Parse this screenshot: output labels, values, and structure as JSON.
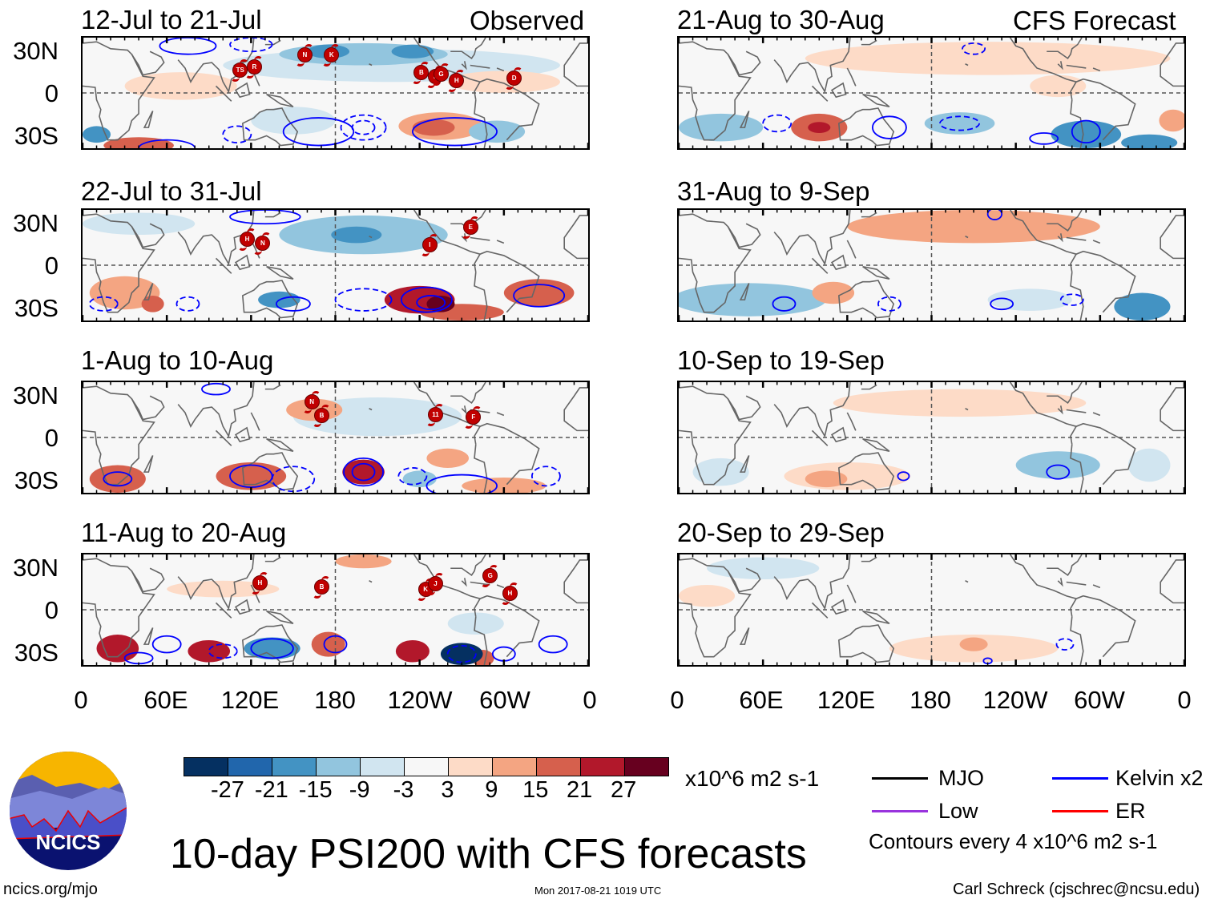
{
  "header": {
    "observed_label": "Observed",
    "forecast_label": "CFS Forecast"
  },
  "lat_labels": [
    "30N",
    "0",
    "30S"
  ],
  "lon_labels": [
    "0",
    "60E",
    "120E",
    "180",
    "120W",
    "60W",
    "0"
  ],
  "panels": [
    {
      "title": "12-Jul to 21-Jul",
      "column": "observed",
      "shading": [
        {
          "lon": 220,
          "lat": 20,
          "rlon": 120,
          "rlat": 12,
          "value": -3
        },
        {
          "lon": 200,
          "lat": 28,
          "rlon": 60,
          "rlat": 8,
          "value": -9
        },
        {
          "lon": 175,
          "lat": 30,
          "rlon": 15,
          "rlat": 5,
          "value": -15
        },
        {
          "lon": 235,
          "lat": 30,
          "rlon": 15,
          "rlat": 5,
          "value": -15
        },
        {
          "lon": 70,
          "lat": 5,
          "rlon": 40,
          "rlat": 10,
          "value": 3
        },
        {
          "lon": 300,
          "lat": 8,
          "rlon": 40,
          "rlat": 8,
          "value": 3
        },
        {
          "lon": 255,
          "lat": -24,
          "rlon": 30,
          "rlat": 10,
          "value": 9
        },
        {
          "lon": 250,
          "lat": -25,
          "rlon": 15,
          "rlat": 6,
          "value": 15
        },
        {
          "lon": 40,
          "lat": -38,
          "rlon": 25,
          "rlat": 6,
          "value": 15
        },
        {
          "lon": 10,
          "lat": -30,
          "rlon": 10,
          "rlat": 6,
          "value": -15
        },
        {
          "lon": 295,
          "lat": -28,
          "rlon": 20,
          "rlat": 8,
          "value": -9
        },
        {
          "lon": 150,
          "lat": -20,
          "rlon": 30,
          "rlat": 10,
          "value": -3
        }
      ],
      "contours": [
        {
          "lon": 200,
          "lat": -25,
          "rlon": 16,
          "rlat": 9,
          "sign": -1
        },
        {
          "lon": 200,
          "lat": -25,
          "rlon": 8,
          "rlat": 5,
          "sign": -1
        },
        {
          "lon": 168,
          "lat": -28,
          "rlon": 25,
          "rlat": 10,
          "sign": 1
        },
        {
          "lon": 265,
          "lat": -28,
          "rlon": 30,
          "rlat": 10,
          "sign": 1
        },
        {
          "lon": 110,
          "lat": -30,
          "rlon": 10,
          "rlat": 6,
          "sign": -1
        },
        {
          "lon": 60,
          "lat": -40,
          "rlon": 20,
          "rlat": 6,
          "sign": 1
        },
        {
          "lon": 75,
          "lat": 34,
          "rlon": 20,
          "rlat": 6,
          "sign": 1
        },
        {
          "lon": 120,
          "lat": 35,
          "rlon": 15,
          "rlat": 5,
          "sign": -1
        }
      ],
      "storms": [
        {
          "lon": 112,
          "lat": 17,
          "label": "TS"
        },
        {
          "lon": 122,
          "lat": 19,
          "label": "R"
        },
        {
          "lon": 158,
          "lat": 28,
          "label": "N"
        },
        {
          "lon": 177,
          "lat": 28,
          "label": "K"
        },
        {
          "lon": 241,
          "lat": 15,
          "label": "B"
        },
        {
          "lon": 251,
          "lat": 12,
          "label": "F"
        },
        {
          "lon": 255,
          "lat": 14,
          "label": "G"
        },
        {
          "lon": 266,
          "lat": 9,
          "label": "H"
        },
        {
          "lon": 307,
          "lat": 11,
          "label": "D"
        }
      ]
    },
    {
      "title": "21-Aug to 30-Aug",
      "column": "forecast",
      "shading": [
        {
          "lon": 220,
          "lat": 25,
          "rlon": 130,
          "rlat": 12,
          "value": 3
        },
        {
          "lon": 270,
          "lat": 5,
          "rlon": 20,
          "rlat": 8,
          "value": 3
        },
        {
          "lon": 30,
          "lat": -25,
          "rlon": 30,
          "rlat": 10,
          "value": -9
        },
        {
          "lon": 100,
          "lat": -25,
          "rlon": 20,
          "rlat": 10,
          "value": 15
        },
        {
          "lon": 100,
          "lat": -25,
          "rlon": 8,
          "rlat": 4,
          "value": 21
        },
        {
          "lon": 200,
          "lat": -22,
          "rlon": 25,
          "rlat": 8,
          "value": -9
        },
        {
          "lon": 290,
          "lat": -30,
          "rlon": 25,
          "rlat": 10,
          "value": -15
        },
        {
          "lon": 335,
          "lat": -36,
          "rlon": 20,
          "rlat": 6,
          "value": -15
        },
        {
          "lon": 352,
          "lat": -20,
          "rlon": 10,
          "rlat": 8,
          "value": 9
        }
      ],
      "contours": [
        {
          "lon": 70,
          "lat": -22,
          "rlon": 10,
          "rlat": 6,
          "sign": -1
        },
        {
          "lon": 150,
          "lat": -25,
          "rlon": 12,
          "rlat": 8,
          "sign": 1
        },
        {
          "lon": 200,
          "lat": -22,
          "rlon": 14,
          "rlat": 5,
          "sign": -1
        },
        {
          "lon": 290,
          "lat": -28,
          "rlon": 10,
          "rlat": 8,
          "sign": 1
        },
        {
          "lon": 210,
          "lat": 32,
          "rlon": 8,
          "rlat": 4,
          "sign": -1
        },
        {
          "lon": 260,
          "lat": -33,
          "rlon": 10,
          "rlat": 4,
          "sign": 1
        }
      ],
      "storms": []
    },
    {
      "title": "22-Jul to 31-Jul",
      "column": "observed",
      "shading": [
        {
          "lon": 200,
          "lat": 22,
          "rlon": 60,
          "rlat": 14,
          "value": -9
        },
        {
          "lon": 195,
          "lat": 22,
          "rlon": 18,
          "rlat": 6,
          "value": -15
        },
        {
          "lon": 40,
          "lat": 30,
          "rlon": 40,
          "rlat": 8,
          "value": -3
        },
        {
          "lon": 240,
          "lat": -25,
          "rlon": 25,
          "rlat": 10,
          "value": 21
        },
        {
          "lon": 255,
          "lat": -28,
          "rlon": 10,
          "rlat": 6,
          "value": 27
        },
        {
          "lon": 270,
          "lat": -34,
          "rlon": 30,
          "rlat": 6,
          "value": 15
        },
        {
          "lon": 325,
          "lat": -20,
          "rlon": 25,
          "rlat": 10,
          "value": 15
        },
        {
          "lon": 140,
          "lat": -25,
          "rlon": 15,
          "rlat": 6,
          "value": -15
        },
        {
          "lon": 30,
          "lat": -20,
          "rlon": 25,
          "rlat": 12,
          "value": 9
        },
        {
          "lon": 50,
          "lat": -28,
          "rlon": 8,
          "rlat": 6,
          "value": 15
        }
      ],
      "contours": [
        {
          "lon": 245,
          "lat": -25,
          "rlon": 18,
          "rlat": 9,
          "sign": 1
        },
        {
          "lon": 248,
          "lat": -27,
          "rlon": 10,
          "rlat": 5,
          "sign": 1
        },
        {
          "lon": 200,
          "lat": -25,
          "rlon": 20,
          "rlat": 8,
          "sign": -1
        },
        {
          "lon": 325,
          "lat": -22,
          "rlon": 18,
          "rlat": 8,
          "sign": 1
        },
        {
          "lon": 150,
          "lat": -28,
          "rlon": 12,
          "rlat": 5,
          "sign": 1
        },
        {
          "lon": 15,
          "lat": -28,
          "rlon": 10,
          "rlat": 5,
          "sign": -1
        },
        {
          "lon": 75,
          "lat": -28,
          "rlon": 8,
          "rlat": 5,
          "sign": -1
        },
        {
          "lon": 130,
          "lat": 35,
          "rlon": 25,
          "rlat": 5,
          "sign": 1
        }
      ],
      "storms": [
        {
          "lon": 117,
          "lat": 19,
          "label": "H"
        },
        {
          "lon": 128,
          "lat": 16,
          "label": "N"
        },
        {
          "lon": 247,
          "lat": 15,
          "label": "I"
        },
        {
          "lon": 276,
          "lat": 28,
          "label": "E"
        }
      ]
    },
    {
      "title": "31-Aug to 9-Sep",
      "column": "forecast",
      "shading": [
        {
          "lon": 210,
          "lat": 28,
          "rlon": 90,
          "rlat": 12,
          "value": 9
        },
        {
          "lon": 50,
          "lat": -25,
          "rlon": 55,
          "rlat": 12,
          "value": -9
        },
        {
          "lon": 110,
          "lat": -20,
          "rlon": 15,
          "rlat": 8,
          "value": 9
        },
        {
          "lon": 330,
          "lat": -30,
          "rlon": 20,
          "rlat": 10,
          "value": -15
        },
        {
          "lon": 250,
          "lat": -25,
          "rlon": 30,
          "rlat": 8,
          "value": -3
        }
      ],
      "contours": [
        {
          "lon": 75,
          "lat": -28,
          "rlon": 8,
          "rlat": 5,
          "sign": 1
        },
        {
          "lon": 150,
          "lat": -28,
          "rlon": 8,
          "rlat": 5,
          "sign": -1
        },
        {
          "lon": 230,
          "lat": -28,
          "rlon": 8,
          "rlat": 4,
          "sign": 1
        },
        {
          "lon": 280,
          "lat": -25,
          "rlon": 8,
          "rlat": 4,
          "sign": -1
        },
        {
          "lon": 225,
          "lat": 37,
          "rlon": 5,
          "rlat": 4,
          "sign": 1
        }
      ],
      "storms": []
    },
    {
      "title": "1-Aug to 10-Aug",
      "column": "observed",
      "shading": [
        {
          "lon": 165,
          "lat": 20,
          "rlon": 20,
          "rlat": 8,
          "value": 9
        },
        {
          "lon": 210,
          "lat": 15,
          "rlon": 60,
          "rlat": 14,
          "value": -3
        },
        {
          "lon": 25,
          "lat": -30,
          "rlon": 20,
          "rlat": 10,
          "value": 15
        },
        {
          "lon": 120,
          "lat": -28,
          "rlon": 25,
          "rlat": 10,
          "value": 15
        },
        {
          "lon": 200,
          "lat": -25,
          "rlon": 15,
          "rlat": 9,
          "value": 21
        },
        {
          "lon": 240,
          "lat": -30,
          "rlon": 12,
          "rlat": 6,
          "value": -9
        },
        {
          "lon": 260,
          "lat": -15,
          "rlon": 15,
          "rlat": 7,
          "value": 9
        },
        {
          "lon": 300,
          "lat": -35,
          "rlon": 30,
          "rlat": 6,
          "value": 9
        }
      ],
      "contours": [
        {
          "lon": 200,
          "lat": -25,
          "rlon": 14,
          "rlat": 10,
          "sign": 1
        },
        {
          "lon": 200,
          "lat": -25,
          "rlon": 8,
          "rlat": 6,
          "sign": 1
        },
        {
          "lon": 120,
          "lat": -28,
          "rlon": 15,
          "rlat": 8,
          "sign": 1
        },
        {
          "lon": 235,
          "lat": -28,
          "rlon": 10,
          "rlat": 6,
          "sign": -1
        },
        {
          "lon": 150,
          "lat": -30,
          "rlon": 15,
          "rlat": 9,
          "sign": -1
        },
        {
          "lon": 270,
          "lat": -35,
          "rlon": 25,
          "rlat": 8,
          "sign": 1
        },
        {
          "lon": 330,
          "lat": -28,
          "rlon": 10,
          "rlat": 7,
          "sign": -1
        },
        {
          "lon": 25,
          "lat": -30,
          "rlon": 10,
          "rlat": 5,
          "sign": 1
        },
        {
          "lon": 95,
          "lat": 35,
          "rlon": 10,
          "rlat": 4,
          "sign": 1
        }
      ],
      "storms": [
        {
          "lon": 163,
          "lat": 26,
          "label": "N"
        },
        {
          "lon": 170,
          "lat": 16,
          "label": "B"
        },
        {
          "lon": 251,
          "lat": 17,
          "label": "11"
        },
        {
          "lon": 278,
          "lat": 15,
          "label": "F"
        }
      ]
    },
    {
      "title": "10-Sep to 19-Sep",
      "column": "forecast",
      "shading": [
        {
          "lon": 200,
          "lat": 25,
          "rlon": 90,
          "rlat": 10,
          "value": 3
        },
        {
          "lon": 120,
          "lat": -28,
          "rlon": 45,
          "rlat": 10,
          "value": 3
        },
        {
          "lon": 105,
          "lat": -30,
          "rlon": 15,
          "rlat": 6,
          "value": 9
        },
        {
          "lon": 270,
          "lat": -20,
          "rlon": 30,
          "rlat": 10,
          "value": -9
        },
        {
          "lon": 335,
          "lat": -20,
          "rlon": 15,
          "rlat": 12,
          "value": -3
        },
        {
          "lon": 30,
          "lat": -25,
          "rlon": 20,
          "rlat": 10,
          "value": -3
        }
      ],
      "contours": [
        {
          "lon": 270,
          "lat": -25,
          "rlon": 8,
          "rlat": 5,
          "sign": 1
        },
        {
          "lon": 160,
          "lat": -28,
          "rlon": 4,
          "rlat": 3,
          "sign": 1
        }
      ],
      "storms": []
    },
    {
      "title": "11-Aug to 20-Aug",
      "column": "observed",
      "shading": [
        {
          "lon": 25,
          "lat": -28,
          "rlon": 15,
          "rlat": 10,
          "value": 21
        },
        {
          "lon": 90,
          "lat": -30,
          "rlon": 15,
          "rlat": 8,
          "value": 21
        },
        {
          "lon": 135,
          "lat": -28,
          "rlon": 20,
          "rlat": 8,
          "value": -15
        },
        {
          "lon": 175,
          "lat": -25,
          "rlon": 12,
          "rlat": 9,
          "value": 15
        },
        {
          "lon": 235,
          "lat": -30,
          "rlon": 12,
          "rlat": 8,
          "value": 21
        },
        {
          "lon": 270,
          "lat": -32,
          "rlon": 15,
          "rlat": 8,
          "value": -27
        },
        {
          "lon": 285,
          "lat": -35,
          "rlon": 8,
          "rlat": 6,
          "value": 15
        },
        {
          "lon": 280,
          "lat": -10,
          "rlon": 20,
          "rlat": 8,
          "value": -3
        },
        {
          "lon": 100,
          "lat": 15,
          "rlon": 40,
          "rlat": 6,
          "value": 3
        },
        {
          "lon": 200,
          "lat": 35,
          "rlon": 20,
          "rlat": 5,
          "value": 9
        }
      ],
      "contours": [
        {
          "lon": 60,
          "lat": -25,
          "rlon": 10,
          "rlat": 6,
          "sign": 1
        },
        {
          "lon": 135,
          "lat": -28,
          "rlon": 15,
          "rlat": 7,
          "sign": 1
        },
        {
          "lon": 180,
          "lat": -25,
          "rlon": 8,
          "rlat": 6,
          "sign": 1
        },
        {
          "lon": 270,
          "lat": -32,
          "rlon": 10,
          "rlat": 6,
          "sign": -1
        },
        {
          "lon": 335,
          "lat": -25,
          "rlon": 10,
          "rlat": 6,
          "sign": 1
        },
        {
          "lon": 100,
          "lat": -30,
          "rlon": 10,
          "rlat": 5,
          "sign": -1
        },
        {
          "lon": 300,
          "lat": -32,
          "rlon": 8,
          "rlat": 5,
          "sign": 1
        },
        {
          "lon": 40,
          "lat": -35,
          "rlon": 10,
          "rlat": 4,
          "sign": 1
        }
      ],
      "storms": [
        {
          "lon": 126,
          "lat": 20,
          "label": "H"
        },
        {
          "lon": 170,
          "lat": 17,
          "label": "B"
        },
        {
          "lon": 244,
          "lat": 15,
          "label": "K"
        },
        {
          "lon": 251,
          "lat": 19,
          "label": "J"
        },
        {
          "lon": 290,
          "lat": 25,
          "label": "G"
        },
        {
          "lon": 304,
          "lat": 12,
          "label": "H"
        }
      ]
    },
    {
      "title": "20-Sep to 29-Sep",
      "column": "forecast",
      "shading": [
        {
          "lon": 210,
          "lat": -28,
          "rlon": 60,
          "rlat": 10,
          "value": 3
        },
        {
          "lon": 210,
          "lat": -25,
          "rlon": 10,
          "rlat": 5,
          "value": 9
        },
        {
          "lon": 60,
          "lat": 30,
          "rlon": 40,
          "rlat": 8,
          "value": -3
        },
        {
          "lon": 20,
          "lat": 10,
          "rlon": 20,
          "rlat": 8,
          "value": 3
        }
      ],
      "contours": [
        {
          "lon": 275,
          "lat": -25,
          "rlon": 6,
          "rlat": 4,
          "sign": -1
        },
        {
          "lon": 220,
          "lat": -37,
          "rlon": 3,
          "rlat": 2,
          "sign": 1
        }
      ],
      "storms": []
    }
  ],
  "colorbar": {
    "colors": [
      "#053061",
      "#2166ac",
      "#4393c3",
      "#92c5de",
      "#d1e5f0",
      "#f7f7f7",
      "#fddbc7",
      "#f4a582",
      "#d6604d",
      "#b2182b",
      "#67001f"
    ],
    "labels": [
      "-27",
      "-21",
      "-15",
      "-9",
      "-3",
      "3",
      "9",
      "15",
      "21",
      "27"
    ],
    "units": "x10^6 m2 s-1"
  },
  "legend": {
    "items": [
      {
        "label": "MJO",
        "color": "#000000"
      },
      {
        "label": "Kelvin x2",
        "color": "#0000ff"
      },
      {
        "label": "Low",
        "color": "#9933dd"
      },
      {
        "label": "ER",
        "color": "#ff0000"
      }
    ],
    "note": "Contours every 4 x10^6 m2 s-1"
  },
  "footer": {
    "title": "10-day PSI200 with CFS forecasts",
    "url": "ncics.org/mjo",
    "timestamp": "Mon 2017-08-21 1019 UTC",
    "credit": "Carl Schreck (cjschrec@ncsu.edu)",
    "logo_text": "NCICS"
  }
}
